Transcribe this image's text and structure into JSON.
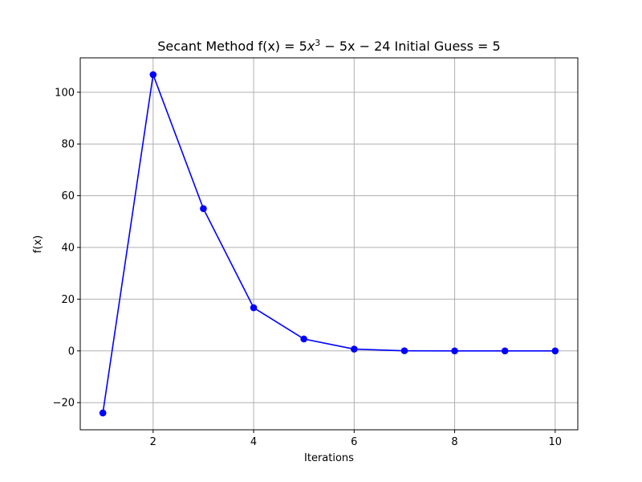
{
  "chart_data": {
    "type": "line",
    "title_prefix": "Secant Method f(x) = ",
    "title_math": {
      "coef": "5",
      "var": "x",
      "exp": "3",
      "rest": " − 5x − 24"
    },
    "title_suffix": " Initial Guess = 5",
    "xlabel": "Iterations",
    "ylabel": "f(x)",
    "x": [
      1,
      2,
      3,
      4,
      5,
      6,
      7,
      8,
      9,
      10
    ],
    "series": [
      {
        "values": [
          -24,
          106.8,
          55.0,
          16.7,
          4.6,
          0.7,
          0.05,
          0.0,
          0.0,
          0.0
        ],
        "color": "#0000ff",
        "marker": "circle"
      }
    ],
    "xlim": [
      0.55,
      10.45
    ],
    "ylim": [
      -30.5,
      113.3
    ],
    "xticks": [
      2,
      4,
      6,
      8,
      10
    ],
    "yticks": [
      -20,
      0,
      20,
      40,
      60,
      80,
      100
    ],
    "xtick_labels": [
      "2",
      "4",
      "6",
      "8",
      "10"
    ],
    "ytick_labels": [
      "−20",
      "0",
      "20",
      "40",
      "60",
      "80",
      "100"
    ],
    "grid": true,
    "grid_color": "#b0b0b0",
    "axes_color": "#000000"
  }
}
